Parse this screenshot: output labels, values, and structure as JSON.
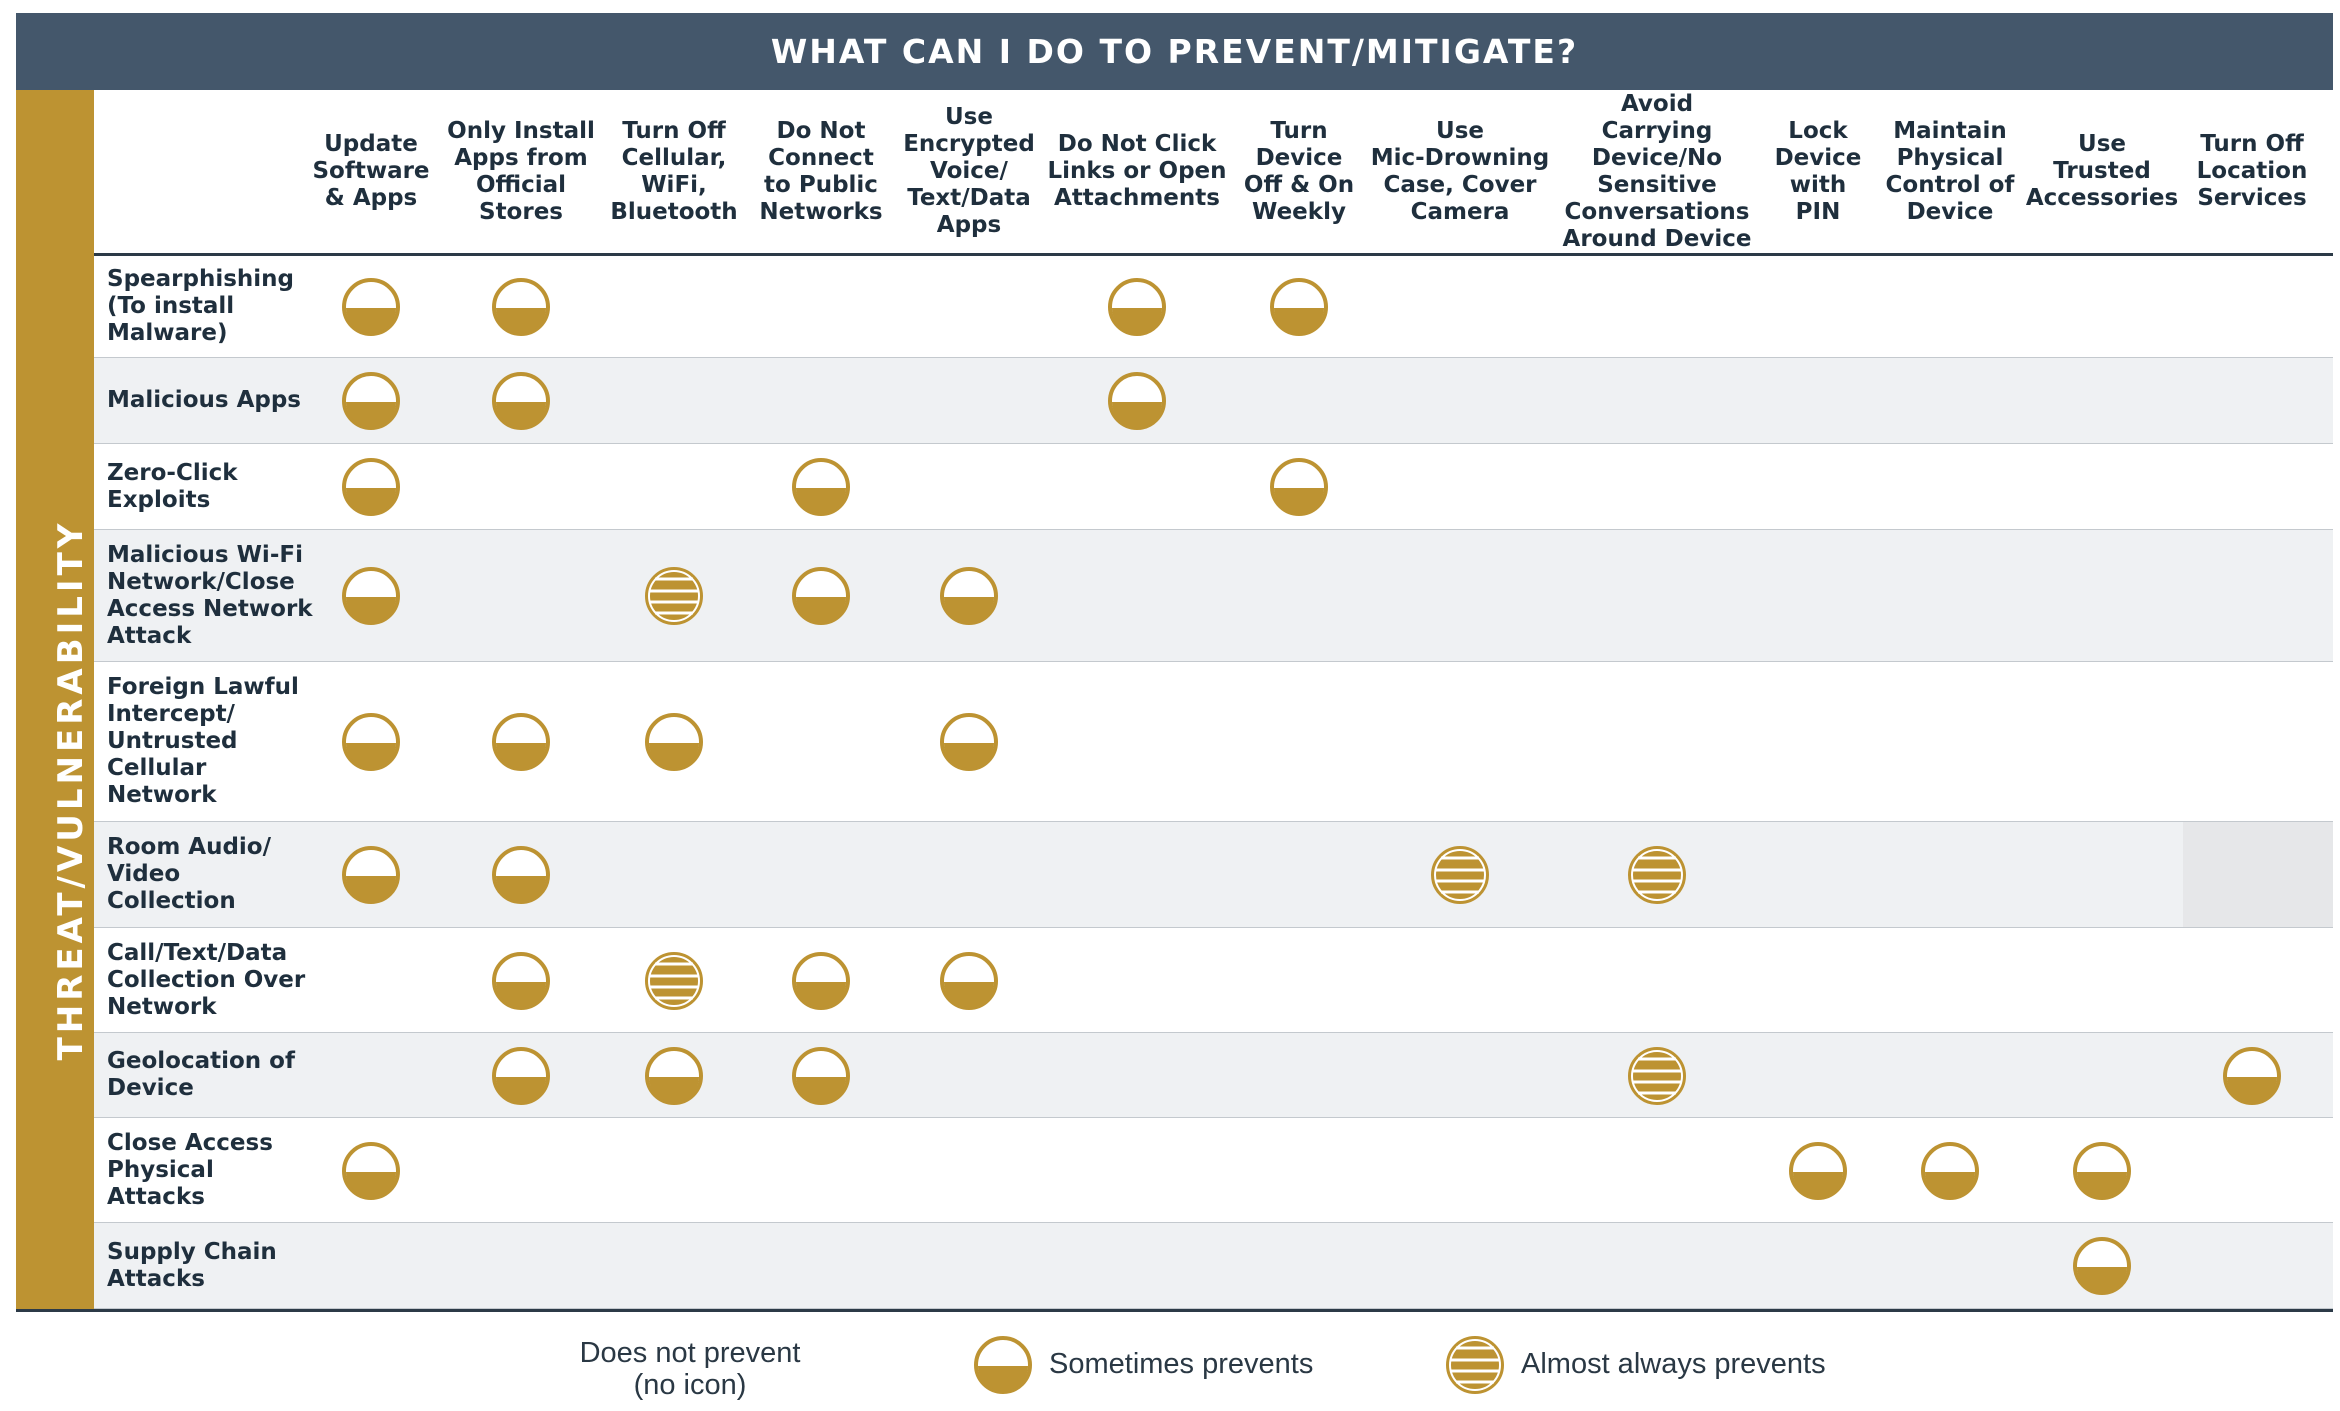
{
  "title": "WHAT CAN I DO TO PREVENT/MITIGATE?",
  "sidebar_label": "THREAT/VULNERABILITY",
  "columns": [
    "Update\nSoftware\n& Apps",
    "Only Install\nApps from\nOfficial\nStores",
    "Turn Off\nCellular,\nWiFi,\nBluetooth",
    "Do Not\nConnect\nto Public\nNetworks",
    "Use\nEncrypted\nVoice/\nText/Data\nApps",
    "Do Not Click\nLinks or Open\nAttachments",
    "Turn\nDevice\nOff & On\nWeekly",
    "Use\nMic-Drowning\nCase, Cover\nCamera",
    "Avoid Carrying\nDevice/No\nSensitive\nConversations\nAround Device",
    "Lock\nDevice\nwith\nPIN",
    "Maintain\nPhysical\nControl of\nDevice",
    "Use\nTrusted\nAccessories",
    "Turn Off\nLocation\nServices"
  ],
  "rows": [
    {
      "label": "Spearphishing\n(To install\nMalware)",
      "cells": [
        "S",
        "S",
        "",
        "",
        "",
        "S",
        "S",
        "",
        "",
        "",
        "",
        "",
        ""
      ]
    },
    {
      "label": "Malicious Apps",
      "cells": [
        "S",
        "S",
        "",
        "",
        "",
        "S",
        "",
        "",
        "",
        "",
        "",
        "",
        ""
      ]
    },
    {
      "label": "Zero-Click\nExploits",
      "cells": [
        "S",
        "",
        "",
        "S",
        "",
        "",
        "S",
        "",
        "",
        "",
        "",
        "",
        ""
      ]
    },
    {
      "label": "Malicious Wi-Fi\nNetwork/Close\nAccess Network\nAttack",
      "cells": [
        "S",
        "",
        "A",
        "S",
        "S",
        "",
        "",
        "",
        "",
        "",
        "",
        "",
        ""
      ]
    },
    {
      "label": "Foreign Lawful\nIntercept/\nUntrusted\nCellular\nNetwork",
      "cells": [
        "S",
        "S",
        "S",
        "",
        "S",
        "",
        "",
        "",
        "",
        "",
        "",
        "",
        ""
      ]
    },
    {
      "label": "Room Audio/\nVideo\nCollection",
      "cells": [
        "S",
        "S",
        "",
        "",
        "",
        "",
        "",
        "A",
        "A",
        "",
        "",
        "",
        ""
      ]
    },
    {
      "label": "Call/Text/Data\nCollection Over\nNetwork",
      "cells": [
        "",
        "S",
        "A",
        "S",
        "S",
        "",
        "",
        "",
        "",
        "",
        "",
        "",
        ""
      ]
    },
    {
      "label": "Geolocation of\nDevice",
      "cells": [
        "",
        "S",
        "S",
        "S",
        "",
        "",
        "",
        "",
        "A",
        "",
        "",
        "",
        "S"
      ]
    },
    {
      "label": "Close Access\nPhysical\nAttacks",
      "cells": [
        "S",
        "",
        "",
        "",
        "",
        "",
        "",
        "",
        "",
        "S",
        "S",
        "S",
        ""
      ]
    },
    {
      "label": "Supply Chain\nAttacks",
      "cells": [
        "",
        "",
        "",
        "",
        "",
        "",
        "",
        "",
        "",
        "",
        "",
        "S",
        ""
      ]
    }
  ],
  "legend": {
    "none": "Does not prevent\n(no icon)",
    "sometimes": "Sometimes prevents",
    "almost_always": "Almost always prevents"
  },
  "colors": {
    "header_bg": "#44576b",
    "sidebar_bg": "#bd9332",
    "icon_gold": "#bd9332",
    "row_shade": "#eff1f3"
  }
}
